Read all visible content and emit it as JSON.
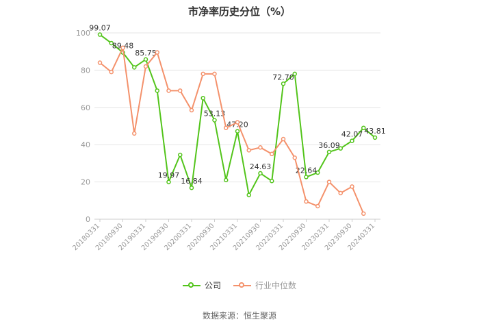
{
  "chart_data": {
    "type": "line",
    "title": "市净率历史分位（%）",
    "ylim": [
      0,
      100
    ],
    "yticks": [
      0,
      20,
      40,
      60,
      80,
      100
    ],
    "grid": true,
    "legend_position": "bottom",
    "x_tick_labels": [
      "20180331",
      "20180930",
      "20190331",
      "20190930",
      "20200331",
      "20200930",
      "20210331",
      "20210930",
      "20220331",
      "20220930",
      "20230331",
      "20230930",
      "20240331"
    ],
    "x": [
      "20180331",
      "20180630",
      "20180930",
      "20181231",
      "20190331",
      "20190630",
      "20190930",
      "20191231",
      "20200331",
      "20200630",
      "20200930",
      "20201231",
      "20210331",
      "20210630",
      "20210930",
      "20211231",
      "20220331",
      "20220630",
      "20220930",
      "20221231",
      "20230331",
      "20230630",
      "20230930",
      "20231231",
      "20240331"
    ],
    "series": [
      {
        "name": "公司",
        "color": "#52c41a",
        "values": [
          99.07,
          94.5,
          89.48,
          81.5,
          85.75,
          69,
          19.97,
          34.5,
          16.84,
          65,
          53.13,
          21,
          47.2,
          13,
          24.63,
          20.5,
          72.7,
          78,
          22.64,
          25,
          36.09,
          38,
          42.07,
          49,
          43.81
        ],
        "labels": {
          "0": "99.07",
          "2": "89.48",
          "4": "85.75",
          "6": "19.97",
          "8": "16.84",
          "10": "53.13",
          "12": "47.20",
          "14": "24.63",
          "16": "72.70",
          "18": "22.64",
          "20": "36.09",
          "22": "42.07",
          "24": "43.81"
        }
      },
      {
        "name": "行业中位数",
        "color": "#f4916b",
        "values": [
          84,
          79,
          92,
          46,
          82,
          89.5,
          69,
          69,
          58.5,
          78,
          78,
          49,
          52,
          37,
          38.5,
          35,
          43,
          33,
          9.5,
          7,
          20,
          14,
          17.5,
          3,
          null
        ]
      }
    ]
  },
  "source": "数据来源：恒生聚源"
}
